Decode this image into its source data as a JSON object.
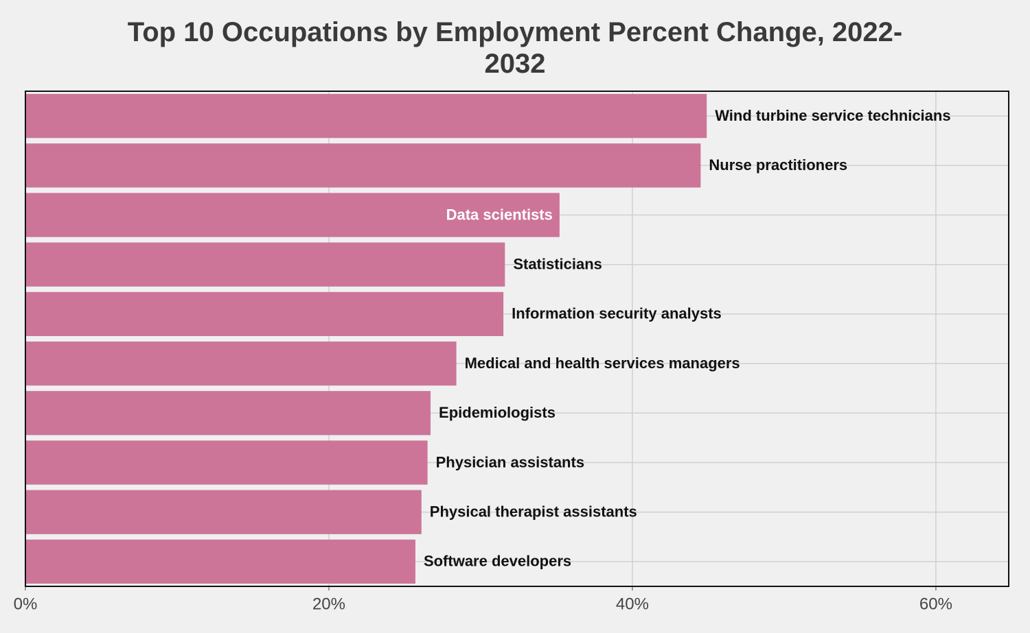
{
  "chart_data": {
    "type": "bar",
    "orientation": "horizontal",
    "title": "Top 10 Occupations by Employment Percent Change, 2022-2032",
    "categories": [
      "Wind turbine service technicians",
      "Nurse practitioners",
      "Data scientists",
      "Statisticians",
      "Information security analysts",
      "Medical and health services managers",
      "Epidemiologists",
      "Physician assistants",
      "Physical therapist assistants",
      "Software developers"
    ],
    "values": [
      44.9,
      44.5,
      35.2,
      31.6,
      31.5,
      28.4,
      26.7,
      26.5,
      26.1,
      25.7
    ],
    "color": "#cc7599",
    "xlim": [
      0,
      64.8
    ],
    "xticks": [
      {
        "value": 0,
        "label": "0%"
      },
      {
        "value": 20,
        "label": "20%"
      },
      {
        "value": 40,
        "label": "40%"
      },
      {
        "value": 60,
        "label": "60%"
      }
    ],
    "grid": true
  }
}
